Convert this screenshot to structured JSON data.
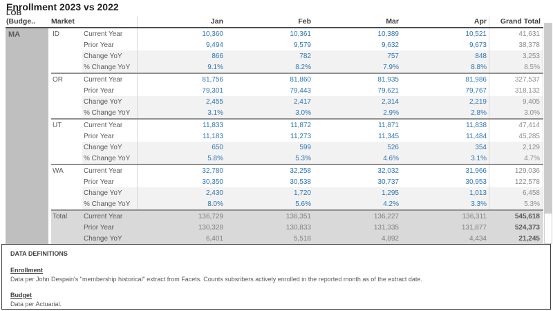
{
  "title": "Enrollment 2023 vs 2022",
  "table": {
    "headers": {
      "lob": "LOB (Budge..",
      "market": "Market",
      "months": [
        "Jan",
        "Feb",
        "Mar",
        "Apr"
      ],
      "grand_total": "Grand Total"
    },
    "lob": "MA",
    "measure_labels": [
      "Current Year",
      "Prior Year",
      "Change YoY",
      "% Change YoY"
    ],
    "groups": [
      {
        "market": "ID",
        "is_total": false,
        "rows": [
          [
            "10,360",
            "10,361",
            "10,389",
            "10,521",
            "41,631"
          ],
          [
            "9,494",
            "9,579",
            "9,632",
            "9,673",
            "38,378"
          ],
          [
            "866",
            "782",
            "757",
            "848",
            "3,253"
          ],
          [
            "9.1%",
            "8.2%",
            "7.9%",
            "8.8%",
            "8.5%"
          ]
        ]
      },
      {
        "market": "OR",
        "is_total": false,
        "rows": [
          [
            "81,756",
            "81,860",
            "81,935",
            "81,986",
            "327,537"
          ],
          [
            "79,301",
            "79,443",
            "79,621",
            "79,767",
            "318,132"
          ],
          [
            "2,455",
            "2,417",
            "2,314",
            "2,219",
            "9,405"
          ],
          [
            "3.1%",
            "3.0%",
            "2.9%",
            "2.8%",
            "3.0%"
          ]
        ]
      },
      {
        "market": "UT",
        "is_total": false,
        "rows": [
          [
            "11,833",
            "11,872",
            "11,871",
            "11,838",
            "47,414"
          ],
          [
            "11,183",
            "11,273",
            "11,345",
            "11,484",
            "45,285"
          ],
          [
            "650",
            "599",
            "526",
            "354",
            "2,129"
          ],
          [
            "5.8%",
            "5.3%",
            "4.6%",
            "3.1%",
            "4.7%"
          ]
        ]
      },
      {
        "market": "WA",
        "is_total": false,
        "rows": [
          [
            "32,780",
            "32,258",
            "32,032",
            "31,966",
            "129,036"
          ],
          [
            "30,350",
            "30,538",
            "30,737",
            "30,953",
            "122,578"
          ],
          [
            "2,430",
            "1,720",
            "1,295",
            "1,013",
            "6,458"
          ],
          [
            "8.0%",
            "5.6%",
            "4.2%",
            "3.3%",
            "5.3%"
          ]
        ]
      },
      {
        "market": "Total",
        "is_total": true,
        "rows": [
          [
            "136,729",
            "136,351",
            "136,227",
            "136,311",
            "545,618"
          ],
          [
            "130,328",
            "130,833",
            "131,335",
            "131,877",
            "524,373"
          ],
          [
            "6,401",
            "5,518",
            "4,892",
            "4,434",
            "21,245"
          ],
          [
            "4.9%",
            "4.2%",
            "3.7%",
            "3.4%",
            "4.1%"
          ]
        ]
      }
    ]
  },
  "definitions": {
    "title": "DATA DEFINITIONS",
    "sections": [
      {
        "heading": "Enrollment",
        "body": "Data per John Despain's \"membership historical\" extract from Facets. Counts subsribers actively enrolled in the reported month as of the extract date."
      },
      {
        "heading": "Budget",
        "body": "Data per Actuarial."
      }
    ]
  },
  "colors": {
    "value_blue": "#2e75b6",
    "grand_total_gray": "#8c8c8c",
    "lob_cell_bg": "#bfbfbf",
    "total_band_bg": "#d9d9d9",
    "band_bg": "#f2f2f2"
  }
}
